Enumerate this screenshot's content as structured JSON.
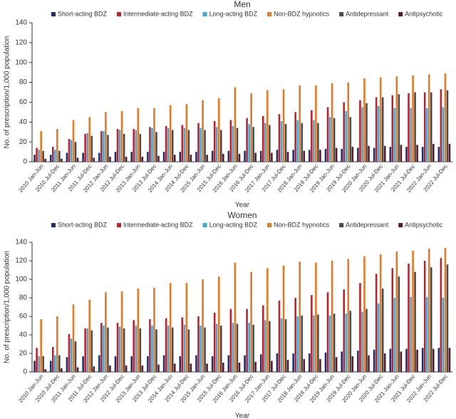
{
  "chart_data": [
    {
      "type": "bar",
      "title": "Men",
      "xlabel": "Year",
      "ylabel": "No. of prescription/1,000 population",
      "categories": [
        "2010 Jan-Jun",
        "2010 Jul-Dec",
        "2011 Jan-Jun",
        "2011 Jul-Dec",
        "2012 Jan-Jun",
        "2012 Jul-Dec",
        "2013 Jan-Jun",
        "2013 Jul-Dec",
        "2014 Jan-Jun",
        "2014 Jul-Dec",
        "2015 Jan-Jun",
        "2015 Jul-Dec",
        "2016 Jan-Jun",
        "2016 Jul-Dec",
        "2017 Jan-Jun",
        "2017 Jul-Dec",
        "2018 Jan-Jun",
        "2018 Jul-Dec",
        "2019 Jan-Jun",
        "2019 Jul-Dec",
        "2020 Jan-Jun",
        "2020 Jul-Dec",
        "2021 Jan-Jun",
        "2021 Jul-Dec",
        "2022 Jan-Jun",
        "2022 Jul-Dec"
      ],
      "series": [
        {
          "name": "Short-acting BDZ",
          "color": "#1f2f6e",
          "values": [
            7,
            7,
            9,
            9,
            9,
            10,
            10,
            10,
            10,
            10,
            10,
            11,
            11,
            11,
            11,
            12,
            12,
            12,
            13,
            13,
            14,
            14,
            15,
            15,
            15,
            15
          ]
        },
        {
          "name": "Intermediate-acting BDZ",
          "color": "#c0202a",
          "values": [
            14,
            15,
            23,
            28,
            31,
            33,
            33,
            35,
            36,
            37,
            39,
            41,
            42,
            44,
            46,
            48,
            50,
            52,
            55,
            60,
            62,
            65,
            67,
            69,
            70,
            73
          ]
        },
        {
          "name": "Long-acting BDZ",
          "color": "#3aa8d8",
          "values": [
            12,
            12,
            22,
            29,
            31,
            32,
            32,
            34,
            34,
            34,
            34,
            35,
            36,
            38,
            39,
            41,
            42,
            42,
            45,
            51,
            55,
            56,
            54,
            54,
            54,
            55
          ]
        },
        {
          "name": "Non-BDZ hypnotics",
          "color": "#e87722",
          "values": [
            31,
            33,
            42,
            45,
            50,
            51,
            54,
            54,
            57,
            58,
            62,
            64,
            75,
            69,
            72,
            73,
            77,
            77,
            79,
            80,
            84,
            85,
            86,
            87,
            88,
            89
          ]
        },
        {
          "name": "Antidepressant",
          "color": "#4a4a4a",
          "values": [
            11,
            11,
            20,
            26,
            27,
            28,
            28,
            30,
            32,
            32,
            32,
            32,
            34,
            35,
            37,
            38,
            39,
            39,
            44,
            45,
            59,
            65,
            68,
            70,
            70,
            72
          ]
        },
        {
          "name": "Antipsychotic",
          "color": "#5a1a2a",
          "values": [
            3,
            3,
            4,
            4,
            5,
            5,
            5,
            6,
            7,
            7,
            7,
            8,
            8,
            9,
            9,
            10,
            11,
            12,
            14,
            15,
            16,
            16,
            17,
            17,
            18,
            18
          ]
        }
      ],
      "ylim": [
        0,
        140
      ],
      "yticks": [
        0,
        20,
        40,
        60,
        80,
        100,
        120,
        140
      ]
    },
    {
      "type": "bar",
      "title": "Women",
      "xlabel": "Year",
      "ylabel": "No. of prescription/1,000 population",
      "categories": [
        "2010 Jan-Jun",
        "2010 Jul-Dec",
        "2011 Jan-Jun",
        "2011 Jul-Dec",
        "2012 Jan-Jun",
        "2012 Jul-Dec",
        "2013 Jan-Jun",
        "2013 Jul-Dec",
        "2014 Jan-Jun",
        "2014 Jul-Dec",
        "2015 Jan-Jun",
        "2015 Jul-Dec",
        "2016 Jan-Jun",
        "2016 Jul-Dec",
        "2017 Jan-Jun",
        "2017 Jul-Dec",
        "2018 Jan-Jun",
        "2018 Jul-Dec",
        "2019 Jan-Jun",
        "2019 Jul-Dec",
        "2020 Jan-Jun",
        "2020 Jul-Dec",
        "2021 Jan-Jun",
        "2021 Jul-Dec",
        "2022 Jan-Jun",
        "2022 Jul-Dec"
      ],
      "series": [
        {
          "name": "Short-acting BDZ",
          "color": "#1f2f6e",
          "values": [
            12,
            12,
            16,
            17,
            18,
            17,
            17,
            17,
            18,
            17,
            18,
            17,
            18,
            18,
            19,
            20,
            20,
            20,
            21,
            22,
            23,
            24,
            25,
            25,
            26,
            26
          ]
        },
        {
          "name": "Intermediate-acting BDZ",
          "color": "#c0202a",
          "values": [
            26,
            27,
            41,
            47,
            53,
            53,
            56,
            57,
            58,
            59,
            60,
            64,
            68,
            68,
            72,
            77,
            80,
            83,
            86,
            89,
            96,
            106,
            112,
            117,
            120,
            123
          ]
        },
        {
          "name": "Long-acting BDZ",
          "color": "#3aa8d8",
          "values": [
            17,
            18,
            36,
            47,
            50,
            49,
            50,
            50,
            50,
            51,
            50,
            52,
            53,
            53,
            56,
            58,
            60,
            61,
            61,
            63,
            65,
            74,
            80,
            81,
            81,
            80
          ]
        },
        {
          "name": "Non-BDZ hypnotics",
          "color": "#e87722",
          "values": [
            57,
            60,
            73,
            78,
            86,
            87,
            90,
            91,
            96,
            96,
            100,
            103,
            118,
            108,
            112,
            115,
            119,
            118,
            120,
            122,
            125,
            127,
            130,
            131,
            133,
            134
          ]
        },
        {
          "name": "Antidepressant",
          "color": "#4a4a4a",
          "values": [
            17,
            18,
            33,
            45,
            48,
            47,
            47,
            46,
            48,
            46,
            48,
            50,
            52,
            51,
            55,
            57,
            61,
            62,
            63,
            66,
            68,
            90,
            103,
            108,
            113,
            116
          ]
        },
        {
          "name": "Antipsychotic",
          "color": "#5a1a2a",
          "values": [
            3,
            4,
            5,
            6,
            7,
            7,
            7,
            8,
            9,
            9,
            9,
            10,
            10,
            11,
            12,
            13,
            14,
            14,
            16,
            17,
            18,
            20,
            22,
            24,
            25,
            26
          ]
        }
      ],
      "ylim": [
        0,
        140
      ],
      "yticks": [
        0,
        20,
        40,
        60,
        80,
        100,
        120,
        140
      ]
    }
  ]
}
